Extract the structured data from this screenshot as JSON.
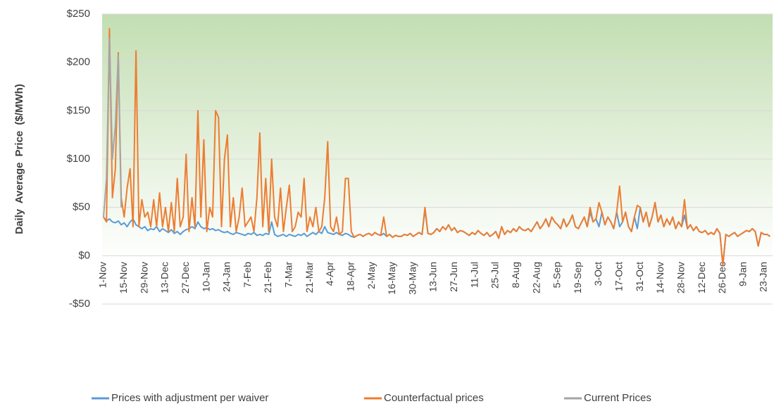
{
  "chart_data": {
    "type": "line",
    "y_label": "Daily Average Price ($/MWh)",
    "ylim": [
      -50,
      250
    ],
    "yticks": [
      {
        "value": -50,
        "label": "-$50"
      },
      {
        "value": 0,
        "label": "$0"
      },
      {
        "value": 50,
        "label": "$50"
      },
      {
        "value": 100,
        "label": "$100"
      },
      {
        "value": 150,
        "label": "$150"
      },
      {
        "value": 200,
        "label": "$200"
      },
      {
        "value": 250,
        "label": "$250"
      }
    ],
    "grid": true,
    "legend": "bottom",
    "categories": [
      "1-Nov",
      null,
      null,
      null,
      null,
      null,
      null,
      "15-Nov",
      null,
      null,
      null,
      null,
      null,
      null,
      "29-Nov",
      null,
      null,
      null,
      null,
      null,
      null,
      "13-Dec",
      null,
      null,
      null,
      null,
      null,
      null,
      "27-Dec",
      null,
      null,
      null,
      null,
      null,
      null,
      "10-Jan",
      null,
      null,
      null,
      null,
      null,
      null,
      "24-Jan",
      null,
      null,
      null,
      null,
      null,
      null,
      "7-Feb",
      null,
      null,
      null,
      null,
      null,
      null,
      "21-Feb",
      null,
      null,
      null,
      null,
      null,
      null,
      "7-Mar",
      null,
      null,
      null,
      null,
      null,
      null,
      "21-Mar",
      null,
      null,
      null,
      null,
      null,
      null,
      "4-Apr",
      null,
      null,
      null,
      null,
      null,
      null,
      "18-Apr",
      null,
      null,
      null,
      null,
      null,
      null,
      "2-May",
      null,
      null,
      null,
      null,
      null,
      null,
      "16-May",
      null,
      null,
      null,
      null,
      null,
      null,
      "30-May",
      null,
      null,
      null,
      null,
      null,
      null,
      "13-Jun",
      null,
      null,
      null,
      null,
      null,
      null,
      "27-Jun",
      null,
      null,
      null,
      null,
      null,
      null,
      "11-Jul",
      null,
      null,
      null,
      null,
      null,
      null,
      "25-Jul",
      null,
      null,
      null,
      null,
      null,
      null,
      "8-Aug",
      null,
      null,
      null,
      null,
      null,
      null,
      "22-Aug",
      null,
      null,
      null,
      null,
      null,
      null,
      "5-Sep",
      null,
      null,
      null,
      null,
      null,
      null,
      "19-Sep",
      null,
      null,
      null,
      null,
      null,
      null,
      "3-Oct",
      null,
      null,
      null,
      null,
      null,
      null,
      "17-Oct",
      null,
      null,
      null,
      null,
      null,
      null,
      "31-Oct",
      null,
      null,
      null,
      null,
      null,
      null,
      "14-Nov",
      null,
      null,
      null,
      null,
      null,
      null,
      "28-Nov",
      null,
      null,
      null,
      null,
      null,
      null,
      "12-Dec",
      null,
      null,
      null,
      null,
      null,
      null,
      "26-Dec",
      null,
      null,
      null,
      null,
      null,
      null,
      "9-Jan",
      null,
      null,
      null,
      null,
      null,
      null,
      "23-Jan",
      null,
      null
    ],
    "series": [
      {
        "name": "Prices with adjustment per waiver",
        "color": "#5b9bd5",
        "values": [
          40,
          36,
          38,
          35,
          34,
          36,
          32,
          34,
          30,
          35,
          38,
          32,
          30,
          28,
          30,
          26,
          28,
          27,
          30,
          25,
          28,
          26,
          24,
          27,
          23,
          25,
          22,
          25,
          27,
          28,
          30,
          28,
          35,
          30,
          28,
          29,
          27,
          28,
          26,
          27,
          25,
          24,
          25,
          23,
          22,
          24,
          23,
          22,
          21,
          23,
          22,
          24,
          21,
          22,
          21,
          23,
          22,
          35,
          22,
          20,
          21,
          22,
          20,
          22,
          21,
          20,
          22,
          21,
          23,
          20,
          22,
          24,
          22,
          25,
          23,
          30,
          24,
          23,
          22,
          24,
          22,
          21,
          23,
          22,
          20,
          19,
          21,
          22,
          20,
          22,
          23,
          21,
          24,
          22,
          21,
          23,
          20,
          22,
          19,
          21,
          20,
          20,
          22,
          21,
          23,
          20,
          22,
          24,
          22,
          48,
          23,
          22,
          24,
          28,
          25,
          30,
          27,
          32,
          26,
          29,
          24,
          26,
          25,
          23,
          21,
          24,
          22,
          26,
          23,
          21,
          24,
          20,
          22,
          25,
          18,
          30,
          22,
          26,
          24,
          28,
          25,
          30,
          27,
          26,
          28,
          25,
          30,
          35,
          28,
          32,
          38,
          30,
          40,
          35,
          32,
          28,
          38,
          30,
          35,
          42,
          30,
          28,
          34,
          40,
          30,
          45,
          35,
          38,
          30,
          45,
          32,
          40,
          35,
          28,
          45,
          30,
          35,
          45,
          30,
          25,
          40,
          28,
          50,
          35,
          45,
          30,
          40,
          55,
          35,
          42,
          30,
          38,
          32,
          40,
          28,
          35,
          30,
          42,
          28,
          32,
          26,
          30,
          25,
          24,
          26,
          22,
          24,
          22,
          28,
          23,
          -10,
          22,
          20,
          22,
          24,
          20,
          22,
          24,
          26,
          25,
          28,
          25,
          10,
          24,
          22,
          22,
          20
        ]
      },
      {
        "name": "Counterfactual prices",
        "color": "#ed7d31",
        "values": [
          40,
          35,
          235,
          60,
          90,
          210,
          60,
          40,
          70,
          90,
          30,
          212,
          30,
          58,
          40,
          45,
          30,
          58,
          30,
          65,
          30,
          50,
          25,
          55,
          25,
          80,
          30,
          40,
          105,
          25,
          60,
          30,
          150,
          40,
          120,
          25,
          50,
          40,
          150,
          143,
          30,
          100,
          125,
          30,
          60,
          25,
          40,
          70,
          30,
          35,
          40,
          25,
          60,
          127,
          30,
          80,
          25,
          100,
          40,
          30,
          70,
          25,
          50,
          73,
          25,
          30,
          45,
          40,
          80,
          25,
          40,
          30,
          50,
          25,
          30,
          60,
          118,
          30,
          25,
          40,
          22,
          25,
          80,
          80,
          25,
          19,
          21,
          22,
          20,
          22,
          23,
          21,
          24,
          22,
          21,
          40,
          20,
          22,
          19,
          21,
          20,
          20,
          22,
          21,
          23,
          20,
          22,
          24,
          22,
          50,
          23,
          22,
          24,
          28,
          25,
          30,
          27,
          32,
          26,
          29,
          24,
          26,
          25,
          23,
          21,
          24,
          22,
          26,
          23,
          21,
          24,
          20,
          22,
          25,
          18,
          30,
          22,
          26,
          24,
          28,
          25,
          30,
          27,
          26,
          28,
          25,
          30,
          35,
          28,
          32,
          38,
          30,
          40,
          35,
          32,
          28,
          38,
          30,
          35,
          42,
          30,
          28,
          34,
          40,
          30,
          50,
          35,
          38,
          55,
          45,
          32,
          40,
          35,
          28,
          45,
          72,
          35,
          45,
          30,
          25,
          40,
          52,
          50,
          35,
          45,
          30,
          40,
          55,
          35,
          42,
          30,
          38,
          32,
          40,
          28,
          35,
          30,
          58,
          28,
          32,
          26,
          30,
          25,
          24,
          26,
          22,
          24,
          22,
          28,
          23,
          -10,
          22,
          20,
          22,
          24,
          20,
          22,
          24,
          26,
          25,
          28,
          25,
          10,
          24,
          22,
          22,
          20
        ]
      },
      {
        "name": "Current Prices",
        "color": "#a5a5a5",
        "values": [
          40,
          80,
          225,
          100,
          135,
          207,
          50,
          null,
          null,
          null,
          null,
          null,
          null,
          null,
          null,
          null,
          null,
          null,
          null,
          null,
          null,
          null,
          null,
          null,
          null,
          null,
          null,
          null,
          null,
          null,
          null,
          null,
          null,
          null,
          null,
          null,
          null,
          null,
          null,
          null,
          null,
          null,
          null,
          null,
          null,
          null,
          null,
          null,
          null,
          null,
          null,
          null,
          null,
          null,
          null,
          null,
          null,
          null,
          null,
          null,
          null,
          null,
          null,
          null,
          null,
          null,
          null,
          null,
          null,
          null,
          null,
          null,
          null,
          null,
          null,
          null,
          null,
          null,
          null,
          null,
          null,
          null,
          null,
          null,
          null,
          null,
          null,
          null,
          null,
          null,
          null,
          null,
          null,
          null,
          null,
          null,
          null,
          null,
          null,
          null,
          null,
          null,
          null,
          null,
          null,
          null,
          null,
          null,
          null,
          null,
          null,
          null,
          null,
          null,
          null,
          null,
          null,
          null,
          null,
          null,
          null,
          null,
          null,
          null,
          null,
          null,
          null,
          null,
          null,
          null,
          null,
          null,
          null,
          null,
          null,
          null,
          null,
          null,
          null,
          null,
          null,
          null,
          null,
          null,
          null,
          null,
          null,
          null,
          null,
          null,
          null,
          null,
          null,
          null,
          null,
          null,
          null,
          null,
          null,
          null,
          null,
          null,
          null,
          null,
          null,
          null,
          null,
          null,
          null,
          null,
          null,
          null,
          null,
          null,
          null,
          null,
          null,
          null,
          null,
          null,
          null,
          null,
          null,
          null,
          null,
          null,
          null,
          null,
          null,
          null,
          null,
          null,
          null,
          null,
          null,
          null,
          null,
          null,
          null,
          null,
          null,
          null,
          null,
          null,
          null,
          null,
          null,
          null,
          null,
          null,
          null,
          null,
          null,
          null,
          null,
          null,
          null,
          null,
          null,
          null,
          null,
          null,
          null,
          null,
          null,
          null,
          null
        ]
      }
    ]
  }
}
